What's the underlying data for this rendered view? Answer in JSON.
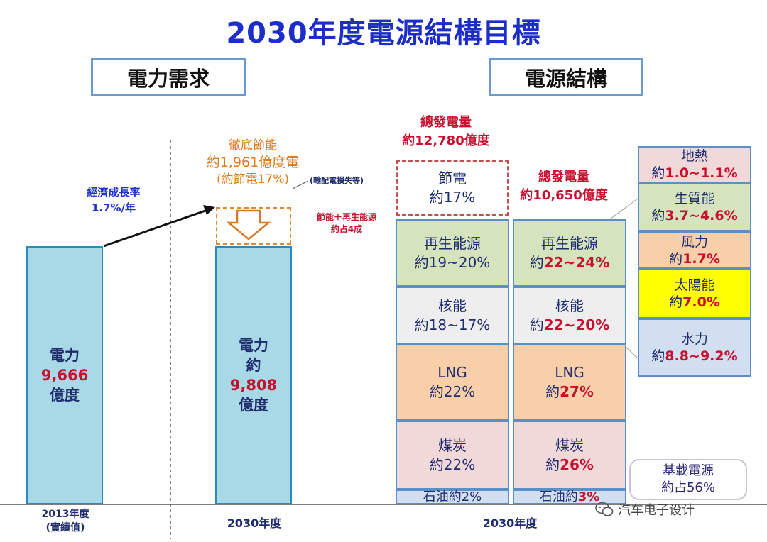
{
  "title": "2030年度電源結構目標",
  "headers": {
    "demand": "電力需求",
    "structure": "電源結構"
  },
  "bar_2013": {
    "line1": "電力",
    "value": "9,666",
    "unit": "億度"
  },
  "bar_2030": {
    "line1": "電力",
    "line2": "約",
    "value": "9,808",
    "unit": "億度"
  },
  "growth": {
    "line1": "經濟成長率",
    "line2": "1.7%/年"
  },
  "saving": {
    "line1": "徹底節能",
    "line2": "約1,961億度電",
    "line3": "(約節電17%)"
  },
  "notes": {
    "loss": "(輸配電損失等)",
    "renew1": "節能＋再生能源",
    "renew2": "約占4成"
  },
  "total_1": {
    "line1": "總發電量",
    "line2": "約12,780億度"
  },
  "total_2": {
    "line1": "總發電量",
    "line2": "約10,650億度"
  },
  "col1": {
    "saving": {
      "name": "節電",
      "pct": "約17%"
    },
    "renew": {
      "name": "再生能源",
      "pct": "約19~20%"
    },
    "nuclear": {
      "name": "核能",
      "pct": "約18~17%"
    },
    "lng": {
      "name": "LNG",
      "pct": "約22%"
    },
    "coal": {
      "name": "煤炭",
      "pct": "約22%"
    },
    "oil": {
      "name": "石油約2%"
    }
  },
  "col2": {
    "renew": {
      "name": "再生能源",
      "prefix": "約",
      "pct": "22~24%"
    },
    "nuclear": {
      "name": "核能",
      "prefix": "約",
      "pct": "22~20%"
    },
    "lng": {
      "name": "LNG",
      "prefix": "約",
      "pct": "27%"
    },
    "coal": {
      "name": "煤炭",
      "prefix": "約",
      "pct": "26%"
    },
    "oil": {
      "name": "石油約",
      "pct": "3%"
    }
  },
  "breakdown": {
    "geothermal": {
      "name": "地熱",
      "prefix": "約",
      "pct": "1.0~1.1%"
    },
    "biomass": {
      "name": "生質能",
      "prefix": "約",
      "pct": "3.7~4.6%"
    },
    "wind": {
      "name": "風力",
      "prefix": "約",
      "pct": "1.7%"
    },
    "solar": {
      "name": "太陽能",
      "prefix": "約",
      "pct": "7.0%"
    },
    "hydro": {
      "name": "水力",
      "prefix": "約",
      "pct": "8.8~9.2%"
    }
  },
  "baseload": {
    "line1": "基載電源",
    "line2": "約占56%"
  },
  "axis": {
    "y2013_1": "2013年度",
    "y2013_2": "(實績值)",
    "y2030a": "2030年度",
    "y2030b": "2030年度"
  },
  "watermark": "汽车电子设计",
  "colors": {
    "title": "#1d2dc8",
    "bar": "#a9d8e6",
    "red": "#c8102e",
    "orange": "#e07b1c"
  }
}
